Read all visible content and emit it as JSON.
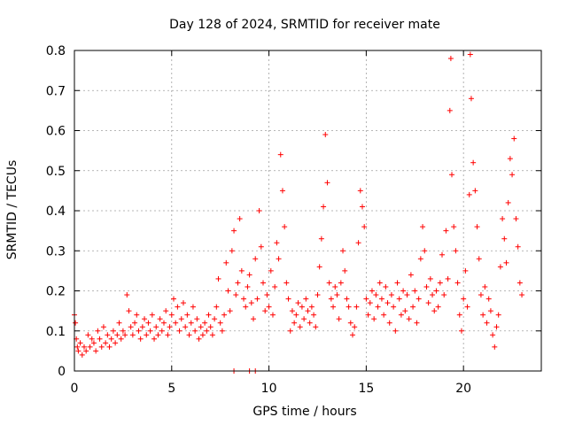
{
  "chart_data": {
    "type": "scatter",
    "title": "Day 128 of 2024, SRMTID for receiver mate",
    "xlabel": "GPS time / hours",
    "ylabel": "SRMTID / TECUs",
    "xlim": [
      0,
      24
    ],
    "ylim": [
      0,
      0.8
    ],
    "xticks": [
      0,
      5,
      10,
      15,
      20
    ],
    "yticks": [
      0,
      0.1,
      0.2,
      0.3,
      0.4,
      0.5,
      0.6,
      0.7,
      0.8
    ],
    "xtick_labels": [
      "0",
      "5",
      "10",
      "15",
      "20"
    ],
    "ytick_labels": [
      "0",
      "0.1",
      "0.2",
      "0.3",
      "0.4",
      "0.5",
      "0.6",
      "0.7",
      "0.8"
    ],
    "grid": true,
    "marker": "+",
    "color": "#ff0000",
    "series": [
      {
        "name": "SRMTID",
        "points": [
          [
            0.0,
            0.14
          ],
          [
            0.05,
            0.12
          ],
          [
            0.1,
            0.08
          ],
          [
            0.15,
            0.06
          ],
          [
            0.2,
            0.05
          ],
          [
            0.3,
            0.07
          ],
          [
            0.4,
            0.04
          ],
          [
            0.5,
            0.06
          ],
          [
            0.6,
            0.05
          ],
          [
            0.7,
            0.09
          ],
          [
            0.8,
            0.06
          ],
          [
            0.9,
            0.08
          ],
          [
            1.0,
            0.07
          ],
          [
            1.1,
            0.05
          ],
          [
            1.2,
            0.1
          ],
          [
            1.3,
            0.08
          ],
          [
            1.4,
            0.06
          ],
          [
            1.5,
            0.11
          ],
          [
            1.6,
            0.07
          ],
          [
            1.7,
            0.09
          ],
          [
            1.8,
            0.06
          ],
          [
            1.9,
            0.08
          ],
          [
            2.0,
            0.1
          ],
          [
            2.1,
            0.07
          ],
          [
            2.2,
            0.09
          ],
          [
            2.3,
            0.12
          ],
          [
            2.4,
            0.08
          ],
          [
            2.5,
            0.1
          ],
          [
            2.6,
            0.09
          ],
          [
            2.7,
            0.19
          ],
          [
            2.8,
            0.15
          ],
          [
            2.9,
            0.11
          ],
          [
            3.0,
            0.09
          ],
          [
            3.1,
            0.12
          ],
          [
            3.2,
            0.14
          ],
          [
            3.3,
            0.1
          ],
          [
            3.4,
            0.08
          ],
          [
            3.5,
            0.11
          ],
          [
            3.6,
            0.13
          ],
          [
            3.7,
            0.09
          ],
          [
            3.8,
            0.12
          ],
          [
            3.9,
            0.1
          ],
          [
            4.0,
            0.14
          ],
          [
            4.1,
            0.08
          ],
          [
            4.2,
            0.11
          ],
          [
            4.3,
            0.09
          ],
          [
            4.4,
            0.13
          ],
          [
            4.5,
            0.1
          ],
          [
            4.6,
            0.12
          ],
          [
            4.7,
            0.15
          ],
          [
            4.8,
            0.09
          ],
          [
            4.9,
            0.11
          ],
          [
            5.0,
            0.14
          ],
          [
            5.1,
            0.18
          ],
          [
            5.2,
            0.12
          ],
          [
            5.3,
            0.16
          ],
          [
            5.4,
            0.1
          ],
          [
            5.5,
            0.13
          ],
          [
            5.6,
            0.17
          ],
          [
            5.7,
            0.11
          ],
          [
            5.8,
            0.14
          ],
          [
            5.9,
            0.09
          ],
          [
            6.0,
            0.12
          ],
          [
            6.1,
            0.16
          ],
          [
            6.2,
            0.1
          ],
          [
            6.3,
            0.13
          ],
          [
            6.4,
            0.08
          ],
          [
            6.5,
            0.11
          ],
          [
            6.6,
            0.09
          ],
          [
            6.7,
            0.12
          ],
          [
            6.8,
            0.1
          ],
          [
            6.9,
            0.14
          ],
          [
            7.0,
            0.11
          ],
          [
            7.1,
            0.09
          ],
          [
            7.2,
            0.13
          ],
          [
            7.3,
            0.16
          ],
          [
            7.4,
            0.23
          ],
          [
            7.5,
            0.12
          ],
          [
            7.6,
            0.1
          ],
          [
            7.7,
            0.14
          ],
          [
            7.8,
            0.27
          ],
          [
            7.9,
            0.2
          ],
          [
            8.0,
            0.15
          ],
          [
            8.1,
            0.3
          ],
          [
            8.2,
            0.35
          ],
          [
            8.3,
            0.19
          ],
          [
            8.4,
            0.22
          ],
          [
            8.5,
            0.38
          ],
          [
            8.6,
            0.25
          ],
          [
            8.7,
            0.18
          ],
          [
            8.8,
            0.16
          ],
          [
            8.9,
            0.21
          ],
          [
            9.0,
            0.24
          ],
          [
            9.1,
            0.17
          ],
          [
            9.2,
            0.13
          ],
          [
            9.3,
            0.28
          ],
          [
            9.4,
            0.18
          ],
          [
            9.5,
            0.4
          ],
          [
            9.6,
            0.31
          ],
          [
            9.7,
            0.22
          ],
          [
            9.8,
            0.15
          ],
          [
            9.9,
            0.19
          ],
          [
            10.0,
            0.16
          ],
          [
            10.1,
            0.25
          ],
          [
            10.2,
            0.14
          ],
          [
            10.3,
            0.21
          ],
          [
            10.4,
            0.32
          ],
          [
            10.5,
            0.28
          ],
          [
            10.6,
            0.54
          ],
          [
            10.7,
            0.45
          ],
          [
            10.8,
            0.36
          ],
          [
            10.9,
            0.22
          ],
          [
            11.0,
            0.18
          ],
          [
            11.1,
            0.1
          ],
          [
            11.2,
            0.15
          ],
          [
            11.3,
            0.12
          ],
          [
            11.4,
            0.14
          ],
          [
            11.5,
            0.17
          ],
          [
            11.6,
            0.11
          ],
          [
            11.7,
            0.16
          ],
          [
            11.8,
            0.13
          ],
          [
            11.9,
            0.18
          ],
          [
            12.0,
            0.15
          ],
          [
            12.1,
            0.12
          ],
          [
            12.2,
            0.16
          ],
          [
            12.3,
            0.14
          ],
          [
            12.4,
            0.11
          ],
          [
            12.5,
            0.19
          ],
          [
            12.6,
            0.26
          ],
          [
            12.7,
            0.33
          ],
          [
            12.8,
            0.41
          ],
          [
            12.9,
            0.59
          ],
          [
            13.0,
            0.47
          ],
          [
            13.1,
            0.22
          ],
          [
            13.2,
            0.18
          ],
          [
            13.3,
            0.16
          ],
          [
            13.4,
            0.21
          ],
          [
            13.5,
            0.19
          ],
          [
            13.6,
            0.13
          ],
          [
            13.7,
            0.22
          ],
          [
            13.8,
            0.3
          ],
          [
            13.9,
            0.25
          ],
          [
            14.0,
            0.18
          ],
          [
            14.1,
            0.16
          ],
          [
            14.2,
            0.12
          ],
          [
            14.3,
            0.09
          ],
          [
            14.4,
            0.11
          ],
          [
            14.5,
            0.16
          ],
          [
            14.6,
            0.32
          ],
          [
            14.7,
            0.45
          ],
          [
            14.8,
            0.41
          ],
          [
            14.9,
            0.36
          ],
          [
            15.0,
            0.18
          ],
          [
            15.1,
            0.14
          ],
          [
            15.2,
            0.17
          ],
          [
            15.3,
            0.2
          ],
          [
            15.4,
            0.13
          ],
          [
            15.5,
            0.19
          ],
          [
            15.6,
            0.16
          ],
          [
            15.7,
            0.22
          ],
          [
            15.8,
            0.18
          ],
          [
            15.9,
            0.14
          ],
          [
            16.0,
            0.21
          ],
          [
            16.1,
            0.17
          ],
          [
            16.2,
            0.12
          ],
          [
            16.3,
            0.19
          ],
          [
            16.4,
            0.16
          ],
          [
            16.5,
            0.1
          ],
          [
            16.6,
            0.22
          ],
          [
            16.7,
            0.18
          ],
          [
            16.8,
            0.14
          ],
          [
            16.9,
            0.2
          ],
          [
            17.0,
            0.15
          ],
          [
            17.1,
            0.19
          ],
          [
            17.2,
            0.13
          ],
          [
            17.3,
            0.24
          ],
          [
            17.4,
            0.16
          ],
          [
            17.5,
            0.2
          ],
          [
            17.6,
            0.12
          ],
          [
            17.7,
            0.18
          ],
          [
            17.8,
            0.28
          ],
          [
            17.9,
            0.36
          ],
          [
            18.0,
            0.3
          ],
          [
            18.1,
            0.21
          ],
          [
            18.2,
            0.17
          ],
          [
            18.3,
            0.23
          ],
          [
            18.4,
            0.19
          ],
          [
            18.5,
            0.15
          ],
          [
            18.6,
            0.2
          ],
          [
            18.7,
            0.16
          ],
          [
            18.8,
            0.22
          ],
          [
            18.9,
            0.29
          ],
          [
            19.0,
            0.19
          ],
          [
            19.1,
            0.35
          ],
          [
            19.2,
            0.23
          ],
          [
            19.3,
            0.65
          ],
          [
            19.35,
            0.78
          ],
          [
            19.4,
            0.49
          ],
          [
            19.5,
            0.36
          ],
          [
            19.6,
            0.3
          ],
          [
            19.7,
            0.22
          ],
          [
            19.8,
            0.14
          ],
          [
            19.9,
            0.1
          ],
          [
            20.0,
            0.18
          ],
          [
            20.1,
            0.25
          ],
          [
            20.2,
            0.16
          ],
          [
            20.3,
            0.44
          ],
          [
            20.35,
            0.79
          ],
          [
            20.4,
            0.68
          ],
          [
            20.5,
            0.52
          ],
          [
            20.6,
            0.45
          ],
          [
            20.7,
            0.36
          ],
          [
            20.8,
            0.28
          ],
          [
            20.9,
            0.19
          ],
          [
            21.0,
            0.14
          ],
          [
            21.1,
            0.21
          ],
          [
            21.2,
            0.12
          ],
          [
            21.3,
            0.18
          ],
          [
            21.4,
            0.15
          ],
          [
            21.5,
            0.09
          ],
          [
            21.6,
            0.06
          ],
          [
            21.7,
            0.11
          ],
          [
            21.8,
            0.14
          ],
          [
            21.9,
            0.26
          ],
          [
            22.0,
            0.38
          ],
          [
            22.1,
            0.33
          ],
          [
            22.2,
            0.27
          ],
          [
            22.3,
            0.42
          ],
          [
            22.4,
            0.53
          ],
          [
            22.5,
            0.49
          ],
          [
            22.6,
            0.58
          ],
          [
            22.7,
            0.38
          ],
          [
            22.8,
            0.31
          ],
          [
            22.9,
            0.22
          ],
          [
            23.0,
            0.19
          ],
          [
            8.2,
            0.0
          ],
          [
            9.0,
            0.0
          ],
          [
            9.3,
            0.0
          ]
        ]
      }
    ]
  }
}
